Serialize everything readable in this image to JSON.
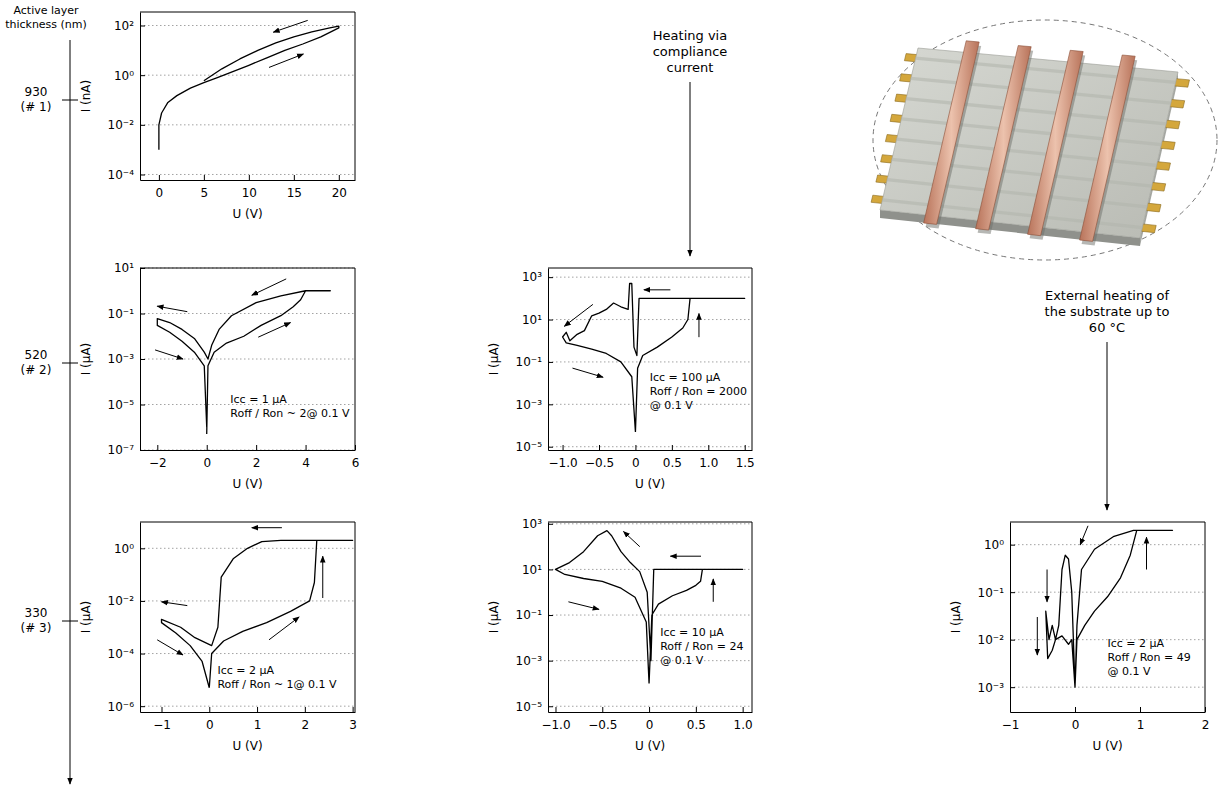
{
  "chart_data": [
    {
      "type": "line",
      "x_label": "U (V)",
      "y_label": "I (nA)",
      "log": "y",
      "grid": true,
      "color": "#000000",
      "xlim": [
        -2.1,
        21.8
      ],
      "ylim": [
        6e-05,
        350
      ],
      "xticks": [
        0,
        5,
        10,
        15,
        20
      ],
      "yticks": [
        {
          "value": 0.0001,
          "label": "10⁻⁴"
        },
        {
          "value": 0.01,
          "label": "10⁻²"
        },
        {
          "value": 1,
          "label": "10⁰"
        },
        {
          "value": 100,
          "label": "10²"
        }
      ],
      "x": [
        0,
        0,
        0.3,
        1,
        2,
        3.5,
        5,
        6.5,
        8,
        10,
        12,
        14,
        16,
        18,
        20,
        20,
        19,
        17,
        15,
        13,
        11,
        9,
        7,
        5
      ],
      "values": [
        0.001,
        0.01,
        0.03,
        0.08,
        0.15,
        0.3,
        0.5,
        0.8,
        1.3,
        2.5,
        5,
        10,
        18,
        35,
        80,
        95,
        80,
        55,
        35,
        20,
        10,
        4.5,
        1.8,
        0.6
      ]
    },
    {
      "type": "line",
      "x_label": "U (V)",
      "y_label": "I (µA)",
      "log": "y",
      "grid": true,
      "color": "#000000",
      "xlim": [
        -2.7,
        6
      ],
      "ylim": [
        1e-07,
        10
      ],
      "xticks": [
        {
          "value": -2,
          "label": "−2"
        },
        0,
        2,
        4,
        6
      ],
      "yticks": [
        {
          "value": 1e-07,
          "label": "10⁻⁷"
        },
        {
          "value": 1e-05,
          "label": "10⁻⁵"
        },
        {
          "value": 0.001,
          "label": "10⁻³"
        },
        {
          "value": 0.1,
          "label": "10⁻¹"
        },
        {
          "value": 10,
          "label": "10¹"
        }
      ],
      "x": [
        0,
        0.05,
        0.3,
        0.8,
        1.5,
        2.2,
        3,
        3.5,
        3.8,
        4,
        5,
        4.5,
        4,
        3,
        2,
        1,
        0.5,
        0.2,
        0.05,
        -0.1,
        -0.5,
        -1,
        -1.5,
        -2,
        -2,
        -1.5,
        -1,
        -0.5,
        -0.1,
        0
      ],
      "values": [
        5e-07,
        0.0005,
        0.002,
        0.005,
        0.01,
        0.03,
        0.08,
        0.2,
        0.4,
        1,
        1,
        1,
        1,
        0.6,
        0.3,
        0.08,
        0.02,
        0.004,
        0.001,
        0.002,
        0.008,
        0.02,
        0.04,
        0.06,
        0.03,
        0.015,
        0.006,
        0.002,
        0.0005,
        1e-06
      ],
      "annotations": [
        "Icc = 1 µA",
        "Roff / Ron ~ 2@ 0.1 V"
      ]
    },
    {
      "type": "line",
      "x_label": "U (V)",
      "y_label": "I (µA)",
      "log": "y",
      "grid": true,
      "color": "#000000",
      "xlim": [
        -1.2,
        1.6
      ],
      "ylim": [
        7e-06,
        2700
      ],
      "xticks": [
        {
          "value": -1,
          "label": "−1.0"
        },
        {
          "value": -0.5,
          "label": "−0.5"
        },
        0,
        0.5,
        {
          "value": 1,
          "label": "1.0"
        },
        1.5
      ],
      "yticks": [
        {
          "value": 1e-05,
          "label": "10⁻⁵"
        },
        {
          "value": 0.001,
          "label": "10⁻³"
        },
        {
          "value": 0.1,
          "label": "10⁻¹"
        },
        {
          "value": 10,
          "label": "10¹"
        },
        {
          "value": 1000,
          "label": "10³"
        }
      ],
      "x": [
        0,
        0.03,
        0.1,
        0.3,
        0.5,
        0.65,
        0.72,
        0.75,
        1.5,
        1,
        0.5,
        0.05,
        0.02,
        -0.02,
        -0.05,
        -0.08,
        -0.1,
        -0.2,
        -0.3,
        -0.4,
        -0.5,
        -0.6,
        -0.7,
        -0.8,
        -0.9,
        -0.95,
        -1,
        -0.95,
        -0.8,
        -0.6,
        -0.4,
        -0.2,
        -0.05,
        0
      ],
      "values": [
        5e-05,
        0.05,
        0.2,
        0.5,
        1.5,
        4,
        10,
        100,
        100,
        100,
        100,
        100,
        0.2,
        0.5,
        500,
        500,
        30,
        40,
        60,
        30,
        20,
        15,
        3,
        2,
        1,
        2.5,
        1.5,
        0.8,
        0.6,
        0.4,
        0.25,
        0.1,
        0.02,
        5e-05
      ],
      "annotations": [
        "Icc = 100 µA",
        "Roff / Ron = 2000",
        "@ 0.1 V"
      ]
    },
    {
      "type": "line",
      "x_label": "U (V)",
      "y_label": "I (µA)",
      "log": "y",
      "grid": true,
      "color": "#000000",
      "xlim": [
        -1.45,
        3.05
      ],
      "ylim": [
        6e-07,
        10
      ],
      "xticks": [
        {
          "value": -1,
          "label": "−1"
        },
        0,
        1,
        2,
        3
      ],
      "yticks": [
        {
          "value": 1e-06,
          "label": "10⁻⁶"
        },
        {
          "value": 0.0001,
          "label": "10⁻⁴"
        },
        {
          "value": 0.01,
          "label": "10⁻²"
        },
        {
          "value": 1,
          "label": "10⁰"
        }
      ],
      "x": [
        0,
        0.05,
        0.3,
        0.7,
        1.2,
        1.7,
        2.1,
        2.2,
        2.25,
        3,
        2.3,
        1.5,
        1.1,
        0.8,
        0.5,
        0.25,
        0.18,
        0.05,
        -0.3,
        -0.6,
        -1,
        -1,
        -0.7,
        -0.4,
        -0.15,
        0
      ],
      "values": [
        5e-06,
        0.0001,
        0.0003,
        0.0007,
        0.0015,
        0.004,
        0.01,
        0.05,
        2,
        2,
        2,
        2,
        1.8,
        1,
        0.4,
        0.08,
        0.001,
        0.0002,
        0.0004,
        0.001,
        0.002,
        0.0015,
        0.0006,
        0.0002,
        5e-05,
        5e-06
      ],
      "annotations": [
        "Icc = 2 µA",
        "Roff / Ron ~ 1@ 0.1 V"
      ]
    },
    {
      "type": "line",
      "x_label": "U (V)",
      "y_label": "I (µA)",
      "log": "y",
      "grid": true,
      "color": "#000000",
      "xlim": [
        -1.08,
        1.1
      ],
      "ylim": [
        5.6e-06,
        1200
      ],
      "xticks": [
        {
          "value": -1,
          "label": "−1.0"
        },
        {
          "value": -0.5,
          "label": "−0.5"
        },
        0,
        0.5,
        {
          "value": 1,
          "label": "1.0"
        }
      ],
      "yticks": [
        {
          "value": 1e-05,
          "label": "10⁻⁵"
        },
        {
          "value": 0.001,
          "label": "10⁻³"
        },
        {
          "value": 0.1,
          "label": "10⁻¹"
        },
        {
          "value": 10,
          "label": "10¹"
        },
        {
          "value": 1000,
          "label": "10³"
        }
      ],
      "x": [
        0,
        0.03,
        0.1,
        0.25,
        0.4,
        0.5,
        0.55,
        0.57,
        1,
        0.5,
        0.05,
        0.02,
        -0.02,
        -0.1,
        -0.2,
        -0.3,
        -0.4,
        -0.45,
        -0.55,
        -0.7,
        -0.85,
        -1,
        -0.9,
        -0.7,
        -0.5,
        -0.3,
        -0.15,
        -0.03,
        0
      ],
      "values": [
        0.0001,
        0.1,
        0.3,
        0.7,
        1.2,
        2,
        3,
        10,
        10,
        10,
        10,
        0.001,
        1,
        8,
        20,
        60,
        300,
        500,
        300,
        60,
        20,
        10,
        6,
        4,
        3,
        1.5,
        0.6,
        0.05,
        0.0001
      ],
      "annotations": [
        "Icc = 10 µA",
        "Roff / Ron = 24",
        "@ 0.1 V"
      ]
    },
    {
      "type": "line",
      "x_label": "U (V)",
      "y_label": "I (µA)",
      "log": "y",
      "grid": true,
      "color": "#000000",
      "xlim": [
        -1,
        2
      ],
      "ylim": [
        0.0003,
        3
      ],
      "xticks": [
        {
          "value": -1,
          "label": "−1"
        },
        0,
        1,
        2
      ],
      "yticks": [
        {
          "value": 0.001,
          "label": "10⁻³"
        },
        {
          "value": 0.01,
          "label": "10⁻²"
        },
        {
          "value": 0.1,
          "label": "10⁻¹"
        },
        {
          "value": 1,
          "label": "10⁰"
        }
      ],
      "x": [
        0,
        0.03,
        0.15,
        0.3,
        0.5,
        0.7,
        0.85,
        0.95,
        1.5,
        0.9,
        0.6,
        0.3,
        0.1,
        0.03,
        0,
        -0.05,
        -0.1,
        -0.15,
        -0.2,
        -0.25,
        -0.3,
        -0.35,
        -0.4,
        -0.45,
        -0.42,
        -0.35,
        -0.3,
        -0.2,
        -0.1,
        -0.05,
        0
      ],
      "values": [
        0.001,
        0.01,
        0.02,
        0.04,
        0.08,
        0.2,
        0.6,
        2,
        2,
        2,
        1.5,
        0.8,
        0.3,
        0.02,
        0.001,
        0.1,
        0.5,
        0.6,
        0.3,
        0.02,
        0.01,
        0.02,
        0.01,
        0.04,
        0.004,
        0.006,
        0.01,
        0.012,
        0.008,
        0.01,
        0.001
      ],
      "annotations": [
        "Icc = 2 µA",
        "Roff / Ron = 49",
        "@ 0.1 V"
      ]
    }
  ],
  "figure": {
    "thickness_title": "Active layer thickness (nm)",
    "rows": [
      {
        "thickness": 930,
        "sample": "(# 1)"
      },
      {
        "thickness": 520,
        "sample": "(# 2)"
      },
      {
        "thickness": 330,
        "sample": "(# 3)"
      }
    ],
    "column_heads": [
      "Heating via compliance current",
      "External heating of the substrate up to 60 °C"
    ]
  }
}
